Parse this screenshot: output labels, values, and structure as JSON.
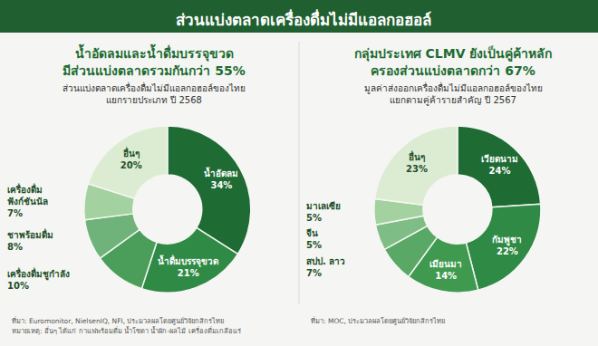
{
  "title": "ส่วนแบ่งตลาดเครื่องดื่มไม่มีแอลกอฮอล์",
  "chart_data": [
    {
      "type": "pie",
      "title": "น้ำอัดลมและน้ำดื่มบรรจุขวด\nมีส่วนแบ่งตลาดรวมกันกว่า 55%",
      "subtitle": "ส่วนแบ่งตลาดเครื่องดื่มไม่มีแอลกอฮอล์ของไทย\nแยกรายประเภท ปี 2568",
      "categories": [
        "น้ำอัดลม",
        "น้ำดื่มบรรจุขวด",
        "เครื่องดื่มชูกำลัง",
        "ชาพร้อมดื่ม",
        "เครื่องดื่ม\nฟังก์ชันนัล",
        "อื่นๆ"
      ],
      "values": [
        34,
        21,
        10,
        8,
        7,
        20
      ],
      "value_labels": [
        "34%",
        "21%",
        "10%",
        "8%",
        "7%",
        "20%"
      ],
      "colors": [
        "#1e6b33",
        "#2f8a45",
        "#4a9e5a",
        "#6fb37a",
        "#a3d19f",
        "#dcecd3"
      ],
      "data_labels": true,
      "annotations": [
        "ที่มา: Euromonitor, NielsenIQ, NFI, ประมวลผลโดยศูนย์วิจัยกสิกรไทย",
        "หมายเหตุ: อื่นๆ ได้แก่ กาแฟพร้อมดื่ม น้ำโซดา น้ำผัก-ผลไม้ เครื่องดื่มเกลือแร่"
      ]
    },
    {
      "type": "pie",
      "title": "กลุ่มประเทศ CLMV ยังเป็นคู่ค้าหลัก\nครองส่วนแบ่งตลาดกว่า 67%",
      "subtitle": "มูลค่าส่งออกเครื่องดื่มไม่มีแอลกอฮอล์ของไทย\nแยกตามคู่ค้ารายสำคัญ ปี 2567",
      "categories": [
        "เวียดนาม",
        "กัมพูชา",
        "เมียนมา",
        "สปป. ลาว",
        "จีน",
        "มาเลเซีย",
        "อื่นๆ"
      ],
      "values": [
        24,
        22,
        14,
        7,
        5,
        5,
        23
      ],
      "value_labels": [
        "24%",
        "22%",
        "14%",
        "7%",
        "5%",
        "5%",
        "23%"
      ],
      "colors": [
        "#1e6b33",
        "#2f8a45",
        "#3f9a50",
        "#5aa866",
        "#7fbd86",
        "#a3d19f",
        "#dcecd3"
      ],
      "data_labels": true,
      "annotations": [
        "ที่มา: MOC, ประมวลผลโดยศูนย์วิจัยกสิกรไทย"
      ]
    }
  ]
}
